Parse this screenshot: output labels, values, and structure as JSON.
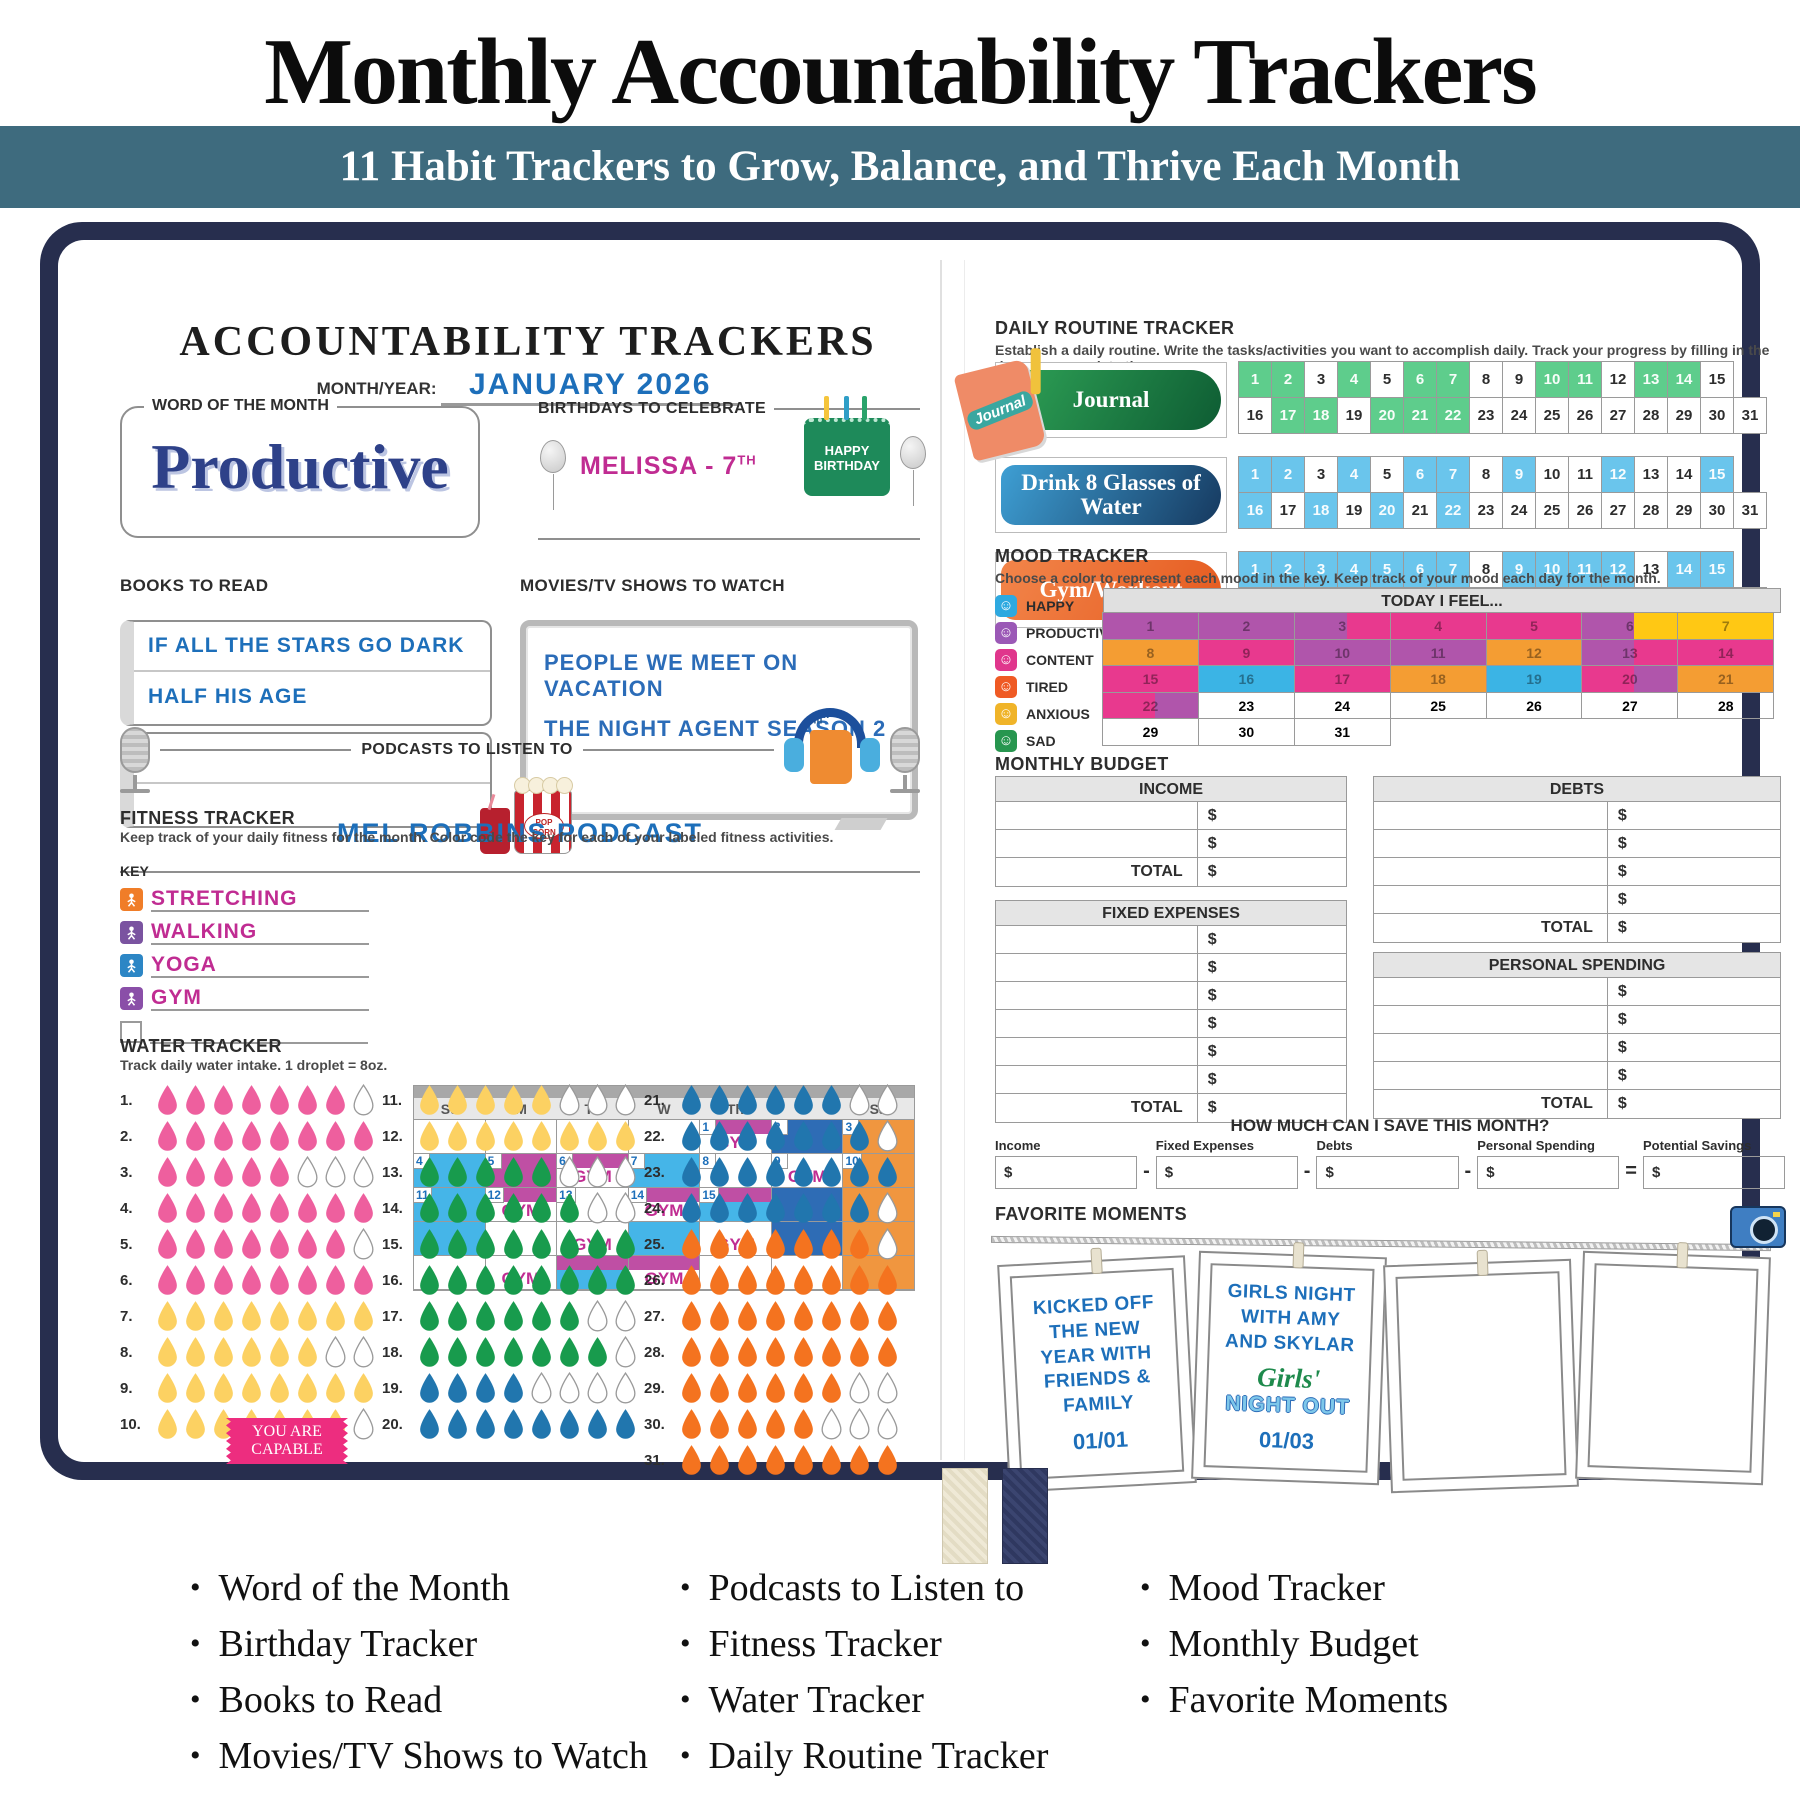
{
  "header": {
    "title": "Monthly Accountability Trackers",
    "subtitle": "11 Habit Trackers to Grow, Balance, and Thrive Each Month",
    "band_color": "#3e6b7e"
  },
  "left": {
    "page_title": "ACCOUNTABILITY TRACKERS",
    "month_label": "MONTH/YEAR:",
    "month_value": "JANUARY 2026",
    "word_of_month": {
      "label": "WORD OF THE MONTH",
      "value": "Productive"
    },
    "birthdays": {
      "label": "BIRTHDAYS TO CELEBRATE",
      "entry": "MELISSA - 7",
      "entry_suffix": "TH",
      "cake_text": "HAPPY BIRTHDAY"
    },
    "books": {
      "label": "BOOKS TO READ",
      "items": [
        "IF ALL THE STARS GO DARK",
        "HALF HIS AGE"
      ]
    },
    "movies": {
      "label": "MOVIES/TV SHOWS TO WATCH",
      "items": [
        "PEOPLE WE MEET ON VACATION",
        "THE NIGHT AGENT SEASON 2"
      ],
      "popcorn_text": "POP CORN"
    },
    "podcasts": {
      "label": "PODCASTS TO LISTEN TO",
      "value": "MEL ROBBINS PODCAST"
    },
    "fitness": {
      "label": "FITNESS TRACKER",
      "desc": "Keep track of your daily fitness for the month. Color code the key for each of your labeled fitness activities.",
      "key_label": "KEY",
      "key": [
        {
          "name": "STRETCHING",
          "color": "#f07d28"
        },
        {
          "name": "WALKING",
          "color": "#7a53a0"
        },
        {
          "name": "YOGA",
          "color": "#2c86c5"
        },
        {
          "name": "GYM",
          "color": "#8a4fa8"
        }
      ],
      "weekdays": [
        "Su",
        "M",
        "Tu",
        "W",
        "Th",
        "F",
        "Sa"
      ],
      "gym_label": "GYM",
      "colors": {
        "cy": "#45b5e8",
        "mg": "#bf4fa4",
        "db": "#2e6cb5",
        "or": "#f0963f"
      },
      "calendar": [
        [
          {},
          {},
          {},
          {},
          {
            "d": 1,
            "f": "mt",
            "g": true
          },
          {
            "d": 2,
            "f": "db"
          },
          {
            "d": 3,
            "f": "or"
          }
        ],
        [
          {
            "d": 4,
            "f": "cy"
          },
          {
            "d": 5,
            "f": "mg"
          },
          {
            "d": 6,
            "f": "mt",
            "g": true
          },
          {
            "d": 7,
            "f": "cy"
          },
          {
            "d": 8
          },
          {
            "d": 9,
            "g": true
          },
          {
            "d": 10,
            "f": "or"
          }
        ],
        [
          {
            "d": 11,
            "f": "cy"
          },
          {
            "d": 12,
            "f": "mt",
            "g": true
          },
          {
            "d": 13
          },
          {
            "d": 14,
            "f": "mt",
            "g": true
          },
          {
            "d": 15,
            "f": "mtc"
          },
          {
            "f": "db"
          },
          {
            "f": "or"
          }
        ],
        [
          {
            "f": "cy"
          },
          {},
          {
            "g": true
          },
          {
            "f": "cy"
          },
          {
            "g": true
          },
          {
            "f": "db"
          },
          {
            "f": "or"
          }
        ],
        [
          {},
          {
            "g": true
          },
          {
            "f": "mtc"
          },
          {
            "f": "mt",
            "g": true
          },
          {},
          {},
          {
            "f": "or"
          }
        ]
      ]
    },
    "water": {
      "label": "WATER TRACKER",
      "desc": "Track daily water intake. 1 droplet = 8oz.",
      "per_row": 8,
      "colors": {
        "pink": "#ee5f9e",
        "yellow": "#fcd162",
        "green": "#189b4d",
        "blue": "#2176ae",
        "orange": "#f4731f"
      },
      "rows": [
        [
          1,
          "pink",
          7
        ],
        [
          2,
          "pink",
          8
        ],
        [
          3,
          "pink",
          5
        ],
        [
          4,
          "pink",
          8
        ],
        [
          5,
          "pink",
          7
        ],
        [
          6,
          "pink",
          8
        ],
        [
          7,
          "yellow",
          8
        ],
        [
          8,
          "yellow",
          6
        ],
        [
          9,
          "yellow",
          8
        ],
        [
          10,
          "yellow",
          7
        ],
        [
          11,
          "yellow",
          5
        ],
        [
          12,
          "yellow",
          8
        ],
        [
          13,
          "green",
          5
        ],
        [
          14,
          "green",
          6
        ],
        [
          15,
          "green",
          8
        ],
        [
          16,
          "green",
          8
        ],
        [
          17,
          "green",
          6
        ],
        [
          18,
          "green",
          7
        ],
        [
          19,
          "blue",
          4
        ],
        [
          20,
          "blue",
          8
        ],
        [
          21,
          "blue",
          6
        ],
        [
          22,
          "blue",
          7
        ],
        [
          23,
          "blue",
          8
        ],
        [
          24,
          "blue",
          7
        ],
        [
          25,
          "orange",
          7
        ],
        [
          26,
          "orange",
          8
        ],
        [
          27,
          "orange",
          8
        ],
        [
          28,
          "orange",
          8
        ],
        [
          29,
          "orange",
          6
        ],
        [
          30,
          "orange",
          5
        ],
        [
          31,
          "orange",
          8
        ]
      ],
      "ribbon_line1": "YOU ARE",
      "ribbon_line2": "CAPABLE"
    }
  },
  "right": {
    "routine": {
      "label": "DAILY ROUTINE TRACKER",
      "desc": "Establish a daily routine. Write the tasks/activities you want to accomplish daily. Track your progress by filling in the days you complete them.",
      "sticker": "Journal",
      "rows": [
        {
          "name": "Journal",
          "pill_from": "#2fa357",
          "pill_to": "#0e5c33",
          "fill": "#5ecd8c",
          "filled": [
            1,
            2,
            4,
            6,
            7,
            10,
            11,
            13,
            14,
            17,
            18,
            20,
            21,
            22
          ]
        },
        {
          "name": "Drink 8 Glasses of Water",
          "pill_from": "#3e9fd4",
          "pill_to": "#16395f",
          "fill": "#6ac5ec",
          "filled": [
            1,
            2,
            4,
            6,
            7,
            9,
            12,
            15,
            16,
            18,
            20,
            22
          ]
        },
        {
          "name": "Gym/Workout",
          "pill_from": "#f2854a",
          "pill_to": "#e55a1f",
          "fill": "#6ac5ec",
          "filled": [
            1,
            2,
            3,
            4,
            5,
            6,
            7,
            9,
            10,
            11,
            12,
            14,
            15,
            16,
            20,
            23,
            26,
            28,
            31
          ]
        }
      ]
    },
    "mood": {
      "label": "MOOD TRACKER",
      "desc": "Choose a color to represent each mood in the key. Keep track of your mood each day for the month.",
      "grid_header": "TODAY I FEEL...",
      "key": [
        {
          "name": "HAPPY",
          "color": "#2ea9e0"
        },
        {
          "name": "PRODUCTIVE",
          "color": "#9b59b6"
        },
        {
          "name": "CONTENT",
          "color": "#e0368c"
        },
        {
          "name": "TIRED",
          "color": "#ef5a24"
        },
        {
          "name": "ANXIOUS",
          "color": "#f0b429"
        },
        {
          "name": "SAD",
          "color": "#27964f"
        }
      ],
      "colors": {
        "pu": "#b055ab",
        "pk": "#e8398e",
        "or": "#f49d33",
        "bl": "#3bb4e5",
        "ye": "#ffc814",
        "w": "#ffffff"
      },
      "days": [
        "pu",
        "pu",
        "pu|pk",
        "pk",
        "pk",
        "pu|ye",
        "ye",
        "or",
        "pk",
        "pu",
        "pu",
        "or",
        "pu|pk",
        "pk",
        "pk",
        "bl",
        "pk",
        "or",
        "bl",
        "pk|pu",
        "or",
        "pk|pu",
        "w",
        "w",
        "w",
        "w",
        "w",
        "w",
        "w",
        "w",
        "w"
      ]
    },
    "budget": {
      "label": "MONTHLY BUDGET",
      "total_label": "TOTAL",
      "currency": "$",
      "tables": [
        {
          "title": "INCOME",
          "rows": 2
        },
        {
          "title": "FIXED EXPENSES",
          "rows": 6
        },
        {
          "title": "DEBTS",
          "rows": 4
        },
        {
          "title": "PERSONAL SPENDING",
          "rows": 4
        }
      ]
    },
    "savings": {
      "title": "HOW MUCH CAN I SAVE THIS MONTH?",
      "fields": [
        "Income",
        "Fixed Expenses",
        "Debts",
        "Personal Spending",
        "Potential Savings"
      ],
      "operators": [
        "-",
        "-",
        "-",
        "="
      ],
      "currency": "$"
    },
    "moments": {
      "label": "FAVORITE MOMENTS",
      "cards": [
        {
          "lines": [
            "KICKED OFF",
            "THE NEW",
            "YEAR WITH",
            "FRIENDS &",
            "FAMILY"
          ],
          "date": "01/01",
          "sticker1": "",
          "sticker2": ""
        },
        {
          "lines": [
            "GIRLS NIGHT",
            "WITH AMY",
            "AND SKYLAR"
          ],
          "date": "01/03",
          "sticker1": "Girls'",
          "sticker2": "NIGHT OUT"
        },
        {
          "lines": [],
          "date": "",
          "sticker1": "",
          "sticker2": ""
        },
        {
          "lines": [],
          "date": "",
          "sticker1": "",
          "sticker2": ""
        }
      ]
    }
  },
  "features": {
    "columns": [
      [
        "Word of the Month",
        "Birthday Tracker",
        "Books to Read",
        "Movies/TV Shows to Watch"
      ],
      [
        "Podcasts to Listen to",
        "Fitness Tracker",
        "Water Tracker",
        "Daily Routine Tracker"
      ],
      [
        "Mood Tracker",
        "Monthly Budget",
        "Favorite Moments"
      ]
    ]
  }
}
